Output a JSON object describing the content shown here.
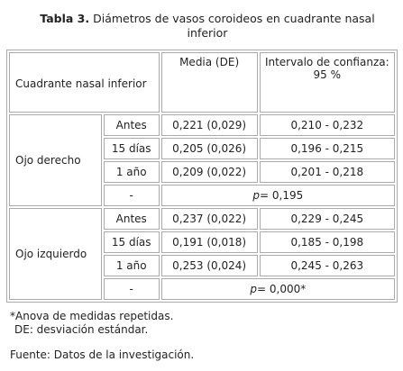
{
  "title": {
    "label": "Tabla 3.",
    "text": "Diámetros de vasos coroideos en cuadrante nasal inferior"
  },
  "table": {
    "header": [
      "Cuadrante nasal inferior",
      "Media (DE)",
      "Intervalo de confianza: 95 %"
    ],
    "groups": [
      {
        "name": "Ojo derecho",
        "rows": [
          [
            "Antes",
            "0,221 (0,029)",
            "0,210 - 0,232"
          ],
          [
            "15 días",
            "0,205 (0,026)",
            "0,196 - 0,215"
          ],
          [
            "1 año",
            "0,209 (0,022)",
            "0,201 - 0,218"
          ]
        ],
        "summary": {
          "label": "-",
          "p_label": "p=",
          "p_value": "0,195"
        }
      },
      {
        "name": "Ojo izquierdo",
        "rows": [
          [
            "Antes",
            "0,237 (0,022)",
            "0,229 - 0,245"
          ],
          [
            "15 días",
            "0,191 (0,018)",
            "0,185 - 0,198"
          ],
          [
            "1 año",
            "0,253 (0,024)",
            "0,245 - 0,263"
          ]
        ],
        "summary": {
          "label": "-",
          "p_label": "p=",
          "p_value": "0,000*"
        }
      }
    ]
  },
  "footnotes": [
    "*Anova de medidas repetidas.",
    "DE: desviación estándar.",
    "Fuente: Datos de la investigación."
  ]
}
